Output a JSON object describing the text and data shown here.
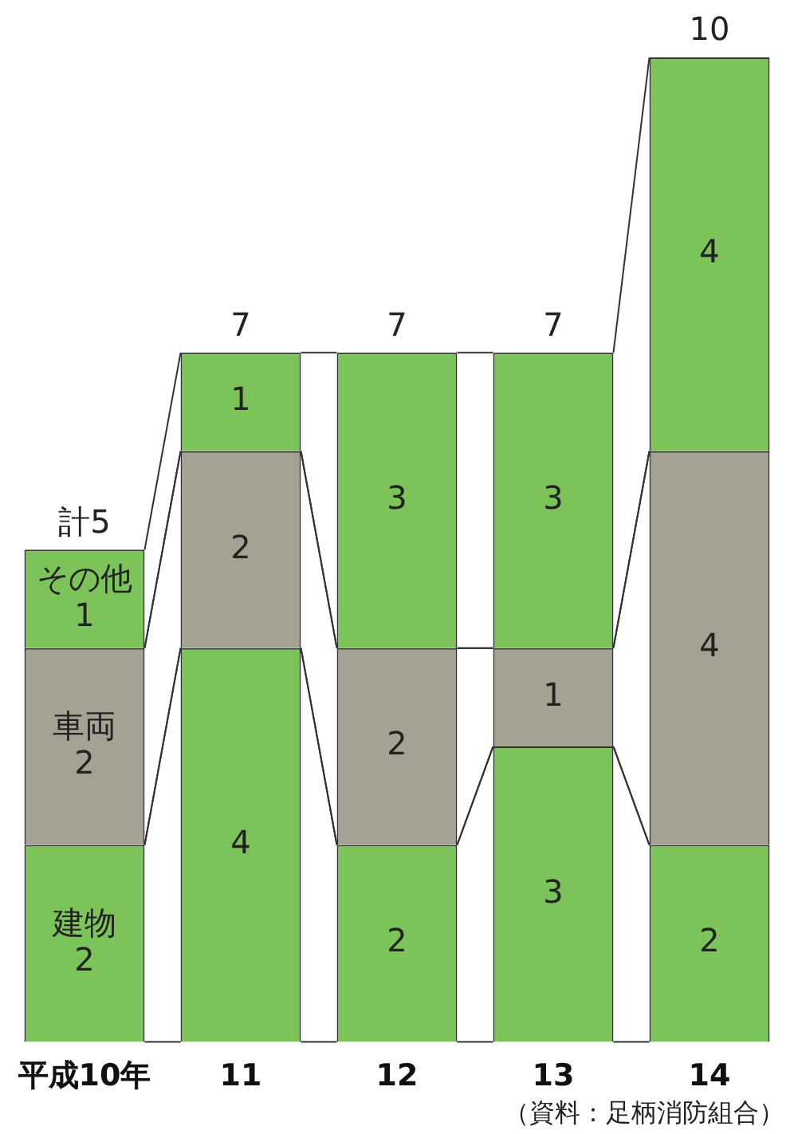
{
  "chart_data": {
    "type": "bar",
    "stacked": true,
    "categories": [
      "平成10年",
      "11",
      "12",
      "13",
      "14"
    ],
    "series": [
      {
        "name": "建物",
        "color": "#7cc35a",
        "values": [
          2,
          4,
          2,
          3,
          2
        ]
      },
      {
        "name": "車両",
        "color": "#a6a293",
        "values": [
          2,
          2,
          2,
          1,
          4
        ]
      },
      {
        "name": "その他",
        "color": "#7cc35a",
        "values": [
          1,
          1,
          3,
          3,
          4
        ]
      }
    ],
    "totals": [
      "計5",
      "7",
      "7",
      "7",
      "10"
    ],
    "data_labels": true,
    "legend": false,
    "grid": false,
    "annotations": [
      "（資料：足柄消防組合）"
    ]
  }
}
